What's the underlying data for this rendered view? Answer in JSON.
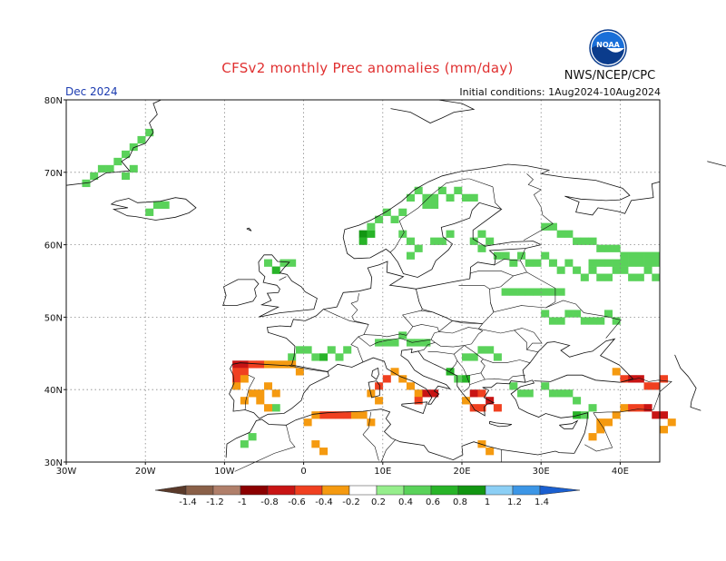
{
  "header": {
    "title": "CFSv2 monthly Prec anomalies (mm/day)",
    "agency": "NWS/NCEP/CPC",
    "month": "Dec 2024",
    "initial_conditions": "Initial conditions: 1Aug2024-10Aug2024"
  },
  "logo": {
    "text": "NOAA",
    "color_top": "#1a6fd8",
    "color_ring": "#0b3c8c"
  },
  "axes": {
    "lat_labels": [
      "80N",
      "70N",
      "60N",
      "50N",
      "40N",
      "30N"
    ],
    "lon_labels": [
      "30W",
      "20W",
      "10W",
      "0",
      "10E",
      "20E",
      "30E",
      "40E"
    ],
    "lat_values": [
      80,
      70,
      60,
      50,
      40,
      30
    ],
    "lon_values": [
      -30,
      -20,
      -10,
      0,
      10,
      20,
      30,
      40
    ]
  },
  "colorbar": {
    "labels": [
      "-1.4",
      "-1.2",
      "-1",
      "-0.8",
      "-0.6",
      "-0.4",
      "-0.2",
      "0.2",
      "0.4",
      "0.6",
      "0.8",
      "1",
      "1.2",
      "1.4"
    ],
    "colors": [
      "#5a3a2a",
      "#8a6048",
      "#b07f6a",
      "#8b0000",
      "#c81414",
      "#f04020",
      "#f59a10",
      "#ffffff",
      "#96ee8c",
      "#5ad25a",
      "#28b428",
      "#129612",
      "#8ccff5",
      "#3c96e6",
      "#1a5fd0"
    ]
  },
  "anomaly_cells": {
    "note_levels": "level per colorbar index",
    "cells": [
      [
        -28,
        68,
        9
      ],
      [
        -27,
        69,
        9
      ],
      [
        -26,
        70,
        9
      ],
      [
        -25,
        70,
        9
      ],
      [
        -24,
        71,
        9
      ],
      [
        -23,
        72,
        9
      ],
      [
        -22,
        73,
        9
      ],
      [
        -21,
        74,
        9
      ],
      [
        -20,
        75,
        9
      ],
      [
        -22,
        70,
        9
      ],
      [
        -23,
        69,
        9
      ],
      [
        -18,
        65,
        9
      ],
      [
        -19,
        65,
        9
      ],
      [
        -20,
        64,
        9
      ],
      [
        7,
        61,
        11
      ],
      [
        7,
        60,
        10
      ],
      [
        8,
        61,
        10
      ],
      [
        8,
        62,
        9
      ],
      [
        9,
        63,
        9
      ],
      [
        10,
        64,
        9
      ],
      [
        11,
        63,
        9
      ],
      [
        12,
        64,
        9
      ],
      [
        13,
        66,
        9
      ],
      [
        14,
        67,
        9
      ],
      [
        15,
        66,
        9
      ],
      [
        16,
        66,
        9
      ],
      [
        17,
        67,
        9
      ],
      [
        18,
        66,
        9
      ],
      [
        19,
        67,
        9
      ],
      [
        20,
        66,
        9
      ],
      [
        21,
        66,
        9
      ],
      [
        15,
        65,
        9
      ],
      [
        16,
        65,
        9
      ],
      [
        12,
        61,
        9
      ],
      [
        13,
        60,
        9
      ],
      [
        14,
        59,
        9
      ],
      [
        13,
        58,
        9
      ],
      [
        16,
        60,
        9
      ],
      [
        17,
        60,
        9
      ],
      [
        18,
        61,
        9
      ],
      [
        21,
        60,
        9
      ],
      [
        22,
        61,
        9
      ],
      [
        22,
        59,
        9
      ],
      [
        23,
        60,
        9
      ],
      [
        24,
        58,
        9
      ],
      [
        25,
        58,
        9
      ],
      [
        26,
        57,
        9
      ],
      [
        27,
        58,
        9
      ],
      [
        28,
        57,
        9
      ],
      [
        29,
        57,
        9
      ],
      [
        30,
        58,
        9
      ],
      [
        31,
        57,
        9
      ],
      [
        32,
        56,
        9
      ],
      [
        33,
        57,
        9
      ],
      [
        34,
        56,
        9
      ],
      [
        35,
        55,
        9
      ],
      [
        36,
        56,
        9
      ],
      [
        37,
        55,
        9
      ],
      [
        38,
        55,
        9
      ],
      [
        39,
        56,
        9
      ],
      [
        40,
        56,
        9
      ],
      [
        41,
        55,
        9
      ],
      [
        42,
        55,
        9
      ],
      [
        43,
        56,
        9
      ],
      [
        44,
        55,
        9
      ],
      [
        30,
        62,
        9
      ],
      [
        31,
        62,
        9
      ],
      [
        32,
        61,
        9
      ],
      [
        33,
        61,
        9
      ],
      [
        34,
        60,
        9
      ],
      [
        35,
        60,
        9
      ],
      [
        36,
        60,
        9
      ],
      [
        37,
        59,
        9
      ],
      [
        38,
        59,
        9
      ],
      [
        39,
        59,
        9
      ],
      [
        40,
        58,
        9
      ],
      [
        41,
        58,
        9
      ],
      [
        42,
        58,
        9
      ],
      [
        43,
        58,
        9
      ],
      [
        44,
        58,
        9
      ],
      [
        36,
        57,
        9
      ],
      [
        37,
        57,
        9
      ],
      [
        38,
        57,
        9
      ],
      [
        39,
        57,
        9
      ],
      [
        40,
        57,
        9
      ],
      [
        41,
        57,
        9
      ],
      [
        42,
        57,
        9
      ],
      [
        43,
        57,
        9
      ],
      [
        44,
        57,
        9
      ],
      [
        25,
        53,
        9
      ],
      [
        26,
        53,
        9
      ],
      [
        27,
        53,
        9
      ],
      [
        28,
        53,
        9
      ],
      [
        29,
        53,
        9
      ],
      [
        30,
        53,
        9
      ],
      [
        31,
        53,
        9
      ],
      [
        32,
        53,
        9
      ],
      [
        -4,
        56,
        10
      ],
      [
        -5,
        57,
        9
      ],
      [
        -3,
        57,
        9
      ],
      [
        -2,
        57,
        9
      ],
      [
        -2,
        44,
        9
      ],
      [
        -1,
        45,
        9
      ],
      [
        0,
        45,
        9
      ],
      [
        1,
        44,
        9
      ],
      [
        2,
        44,
        10
      ],
      [
        3,
        45,
        9
      ],
      [
        4,
        44,
        9
      ],
      [
        5,
        45,
        9
      ],
      [
        9,
        46,
        9
      ],
      [
        10,
        46,
        9
      ],
      [
        11,
        46,
        9
      ],
      [
        12,
        47,
        9
      ],
      [
        13,
        46,
        9
      ],
      [
        14,
        46,
        9
      ],
      [
        15,
        46,
        9
      ],
      [
        20,
        44,
        9
      ],
      [
        21,
        44,
        9
      ],
      [
        22,
        45,
        9
      ],
      [
        23,
        45,
        9
      ],
      [
        24,
        44,
        9
      ],
      [
        18,
        42,
        10
      ],
      [
        19,
        41,
        9
      ],
      [
        20,
        41,
        10
      ],
      [
        30,
        50,
        9
      ],
      [
        31,
        49,
        9
      ],
      [
        32,
        49,
        9
      ],
      [
        33,
        50,
        9
      ],
      [
        34,
        50,
        9
      ],
      [
        35,
        49,
        9
      ],
      [
        36,
        49,
        9
      ],
      [
        37,
        49,
        9
      ],
      [
        38,
        50,
        9
      ],
      [
        39,
        49,
        9
      ],
      [
        31,
        39,
        9
      ],
      [
        32,
        39,
        9
      ],
      [
        33,
        39,
        9
      ],
      [
        34,
        38,
        9
      ],
      [
        30,
        40,
        9
      ],
      [
        26,
        40,
        9
      ],
      [
        27,
        39,
        9
      ],
      [
        28,
        39,
        9
      ],
      [
        34,
        36,
        10
      ],
      [
        35,
        36,
        9
      ],
      [
        36,
        37,
        9
      ],
      [
        -4,
        37,
        9
      ],
      [
        -7,
        33,
        9
      ],
      [
        -8,
        32,
        9
      ],
      [
        -9,
        43,
        4
      ],
      [
        -8,
        43,
        4
      ],
      [
        -9,
        42,
        5
      ],
      [
        -8,
        42,
        5
      ],
      [
        -7,
        43,
        5
      ],
      [
        -6,
        43,
        5
      ],
      [
        -5,
        43,
        6
      ],
      [
        -4,
        43,
        6
      ],
      [
        -3,
        43,
        6
      ],
      [
        -2,
        43,
        6
      ],
      [
        -1,
        42,
        6
      ],
      [
        -9,
        41,
        5
      ],
      [
        -8,
        41,
        6
      ],
      [
        -9,
        40,
        6
      ],
      [
        -7,
        39,
        6
      ],
      [
        -6,
        39,
        6
      ],
      [
        -5,
        40,
        6
      ],
      [
        -4,
        39,
        6
      ],
      [
        -8,
        38,
        6
      ],
      [
        -6,
        38,
        6
      ],
      [
        -5,
        37,
        6
      ],
      [
        9,
        40,
        5
      ],
      [
        10,
        41,
        5
      ],
      [
        11,
        42,
        6
      ],
      [
        12,
        41,
        6
      ],
      [
        13,
        40,
        6
      ],
      [
        14,
        39,
        6
      ],
      [
        15,
        39,
        4
      ],
      [
        16,
        39,
        4
      ],
      [
        14,
        38,
        5
      ],
      [
        9,
        38,
        6
      ],
      [
        8,
        39,
        6
      ],
      [
        21,
        39,
        4
      ],
      [
        22,
        39,
        5
      ],
      [
        23,
        38,
        4
      ],
      [
        24,
        37,
        5
      ],
      [
        21,
        37,
        5
      ],
      [
        22,
        37,
        5
      ],
      [
        20,
        38,
        6
      ],
      [
        2,
        36,
        5
      ],
      [
        3,
        36,
        5
      ],
      [
        4,
        36,
        5
      ],
      [
        5,
        36,
        5
      ],
      [
        6,
        36,
        6
      ],
      [
        7,
        36,
        6
      ],
      [
        8,
        35,
        6
      ],
      [
        1,
        36,
        6
      ],
      [
        0,
        35,
        6
      ],
      [
        1,
        32,
        6
      ],
      [
        2,
        31,
        6
      ],
      [
        22,
        32,
        6
      ],
      [
        23,
        31,
        6
      ],
      [
        40,
        41,
        5
      ],
      [
        41,
        41,
        4
      ],
      [
        42,
        41,
        4
      ],
      [
        43,
        40,
        5
      ],
      [
        44,
        40,
        5
      ],
      [
        45,
        41,
        5
      ],
      [
        39,
        42,
        6
      ],
      [
        40,
        37,
        6
      ],
      [
        41,
        37,
        5
      ],
      [
        42,
        37,
        5
      ],
      [
        43,
        37,
        4
      ],
      [
        44,
        36,
        4
      ],
      [
        45,
        36,
        4
      ],
      [
        39,
        36,
        6
      ],
      [
        38,
        35,
        6
      ],
      [
        37,
        35,
        6
      ],
      [
        37,
        34,
        6
      ],
      [
        36,
        33,
        6
      ],
      [
        45,
        34,
        6
      ],
      [
        46,
        35,
        6
      ]
    ]
  }
}
